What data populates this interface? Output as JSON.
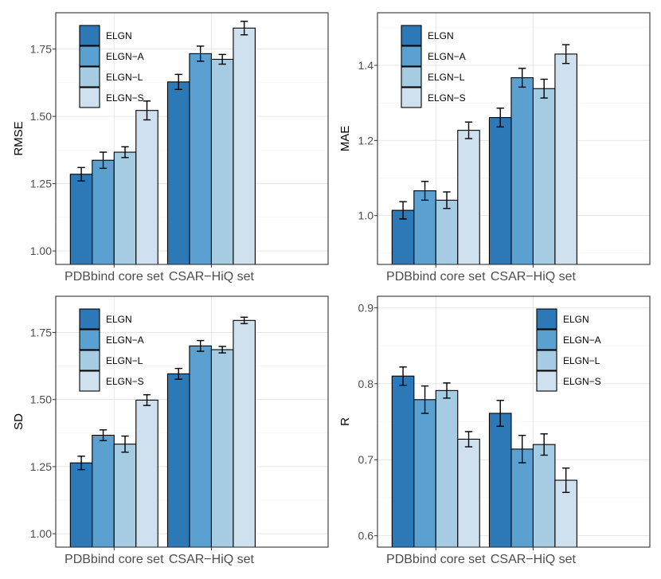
{
  "colors": {
    "series": [
      "#2d79b8",
      "#5aa1d1",
      "#a6cce4",
      "#cfe1ef"
    ],
    "grid_major": "#e6e6e6",
    "grid_minor": "#f2f2f2",
    "axis_text": "#4d4d4d",
    "border": "#333333"
  },
  "chart_data": [
    {
      "type": "bar",
      "ylabel": "RMSE",
      "xlabel": "",
      "categories": [
        "PDBbind core set",
        "CSAR−HiQ set"
      ],
      "legend_position": "top-left",
      "ylim": [
        0.95,
        1.885
      ],
      "yticks": [
        1.0,
        1.25,
        1.5,
        1.75
      ],
      "ytick_labels": [
        "1.00",
        "1.25",
        "1.50",
        "1.75"
      ],
      "series": [
        {
          "name": "ELGN",
          "values": [
            1.285,
            1.628
          ],
          "errors": [
            0.025,
            0.028
          ]
        },
        {
          "name": "ELGN−A",
          "values": [
            1.337,
            1.733
          ],
          "errors": [
            0.03,
            0.028
          ]
        },
        {
          "name": "ELGN−L",
          "values": [
            1.367,
            1.712
          ],
          "errors": [
            0.02,
            0.018
          ]
        },
        {
          "name": "ELGN−S",
          "values": [
            1.522,
            1.828
          ],
          "errors": [
            0.035,
            0.025
          ]
        }
      ]
    },
    {
      "type": "bar",
      "ylabel": "MAE",
      "xlabel": "",
      "categories": [
        "PDBbind core set",
        "CSAR−HiQ set"
      ],
      "legend_position": "top-left",
      "ylim": [
        0.87,
        1.54
      ],
      "yticks": [
        1.0,
        1.2,
        1.4
      ],
      "ytick_labels": [
        "1.0",
        "1.2",
        "1.4"
      ],
      "series": [
        {
          "name": "ELGN",
          "values": [
            1.014,
            1.261
          ],
          "errors": [
            0.023,
            0.025
          ]
        },
        {
          "name": "ELGN−A",
          "values": [
            1.066,
            1.367
          ],
          "errors": [
            0.025,
            0.025
          ]
        },
        {
          "name": "ELGN−L",
          "values": [
            1.041,
            1.338
          ],
          "errors": [
            0.022,
            0.025
          ]
        },
        {
          "name": "ELGN−S",
          "values": [
            1.227,
            1.43
          ],
          "errors": [
            0.022,
            0.025
          ]
        }
      ]
    },
    {
      "type": "bar",
      "ylabel": "SD",
      "xlabel": "",
      "categories": [
        "PDBbind core set",
        "CSAR−HiQ set"
      ],
      "legend_position": "top-left",
      "ylim": [
        0.95,
        1.885
      ],
      "yticks": [
        1.0,
        1.25,
        1.5,
        1.75
      ],
      "ytick_labels": [
        "1.00",
        "1.25",
        "1.50",
        "1.75"
      ],
      "series": [
        {
          "name": "ELGN",
          "values": [
            1.264,
            1.596
          ],
          "errors": [
            0.025,
            0.02
          ]
        },
        {
          "name": "ELGN−A",
          "values": [
            1.367,
            1.7
          ],
          "errors": [
            0.02,
            0.02
          ]
        },
        {
          "name": "ELGN−L",
          "values": [
            1.334,
            1.686
          ],
          "errors": [
            0.03,
            0.012
          ]
        },
        {
          "name": "ELGN−S",
          "values": [
            1.498,
            1.795
          ],
          "errors": [
            0.02,
            0.012
          ]
        }
      ]
    },
    {
      "type": "bar",
      "ylabel": "R",
      "xlabel": "",
      "categories": [
        "PDBbind core set",
        "CSAR−HiQ set"
      ],
      "legend_position": "top-right",
      "ylim": [
        0.585,
        0.915
      ],
      "yticks": [
        0.6,
        0.7,
        0.8,
        0.9
      ],
      "ytick_labels": [
        "0.6",
        "0.7",
        "0.8",
        "0.9"
      ],
      "series": [
        {
          "name": "ELGN",
          "values": [
            0.81,
            0.761
          ],
          "errors": [
            0.012,
            0.017
          ]
        },
        {
          "name": "ELGN−A",
          "values": [
            0.779,
            0.714
          ],
          "errors": [
            0.018,
            0.018
          ]
        },
        {
          "name": "ELGN−L",
          "values": [
            0.791,
            0.72
          ],
          "errors": [
            0.01,
            0.014
          ]
        },
        {
          "name": "ELGN−S",
          "values": [
            0.727,
            0.673
          ],
          "errors": [
            0.01,
            0.016
          ]
        }
      ]
    }
  ]
}
